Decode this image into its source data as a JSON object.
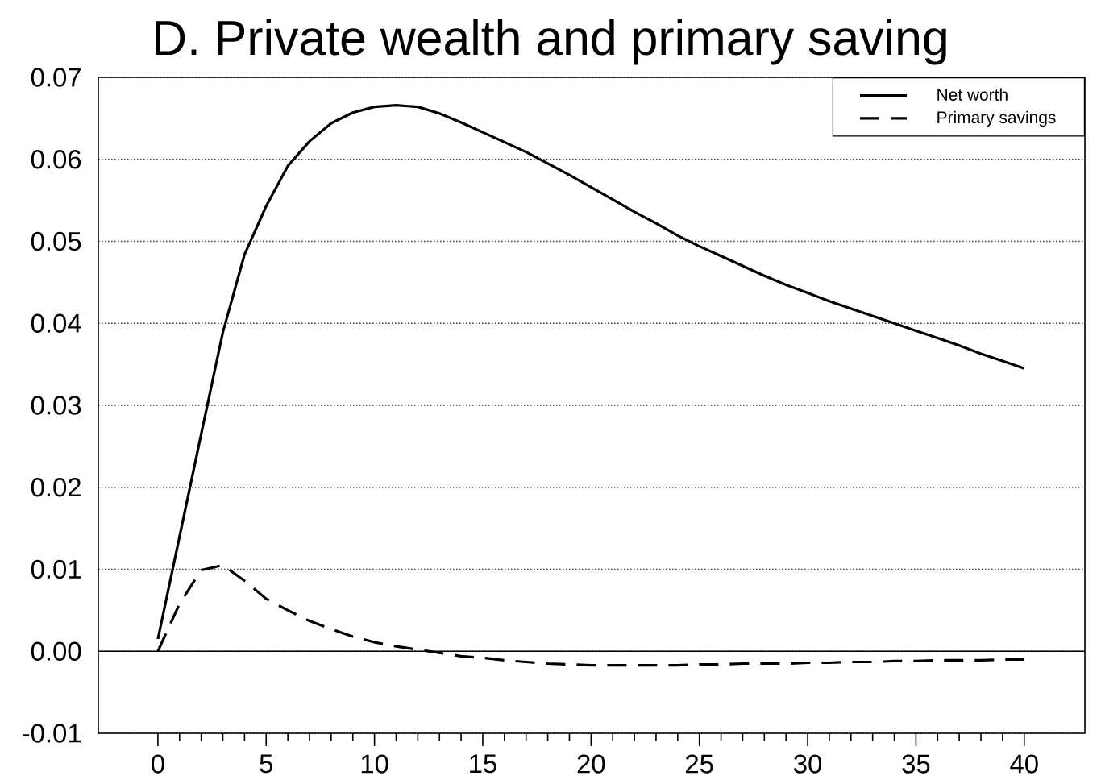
{
  "chart_data": {
    "type": "line",
    "title": "D. Private wealth and primary saving",
    "x": [
      0,
      1,
      2,
      3,
      4,
      5,
      6,
      7,
      8,
      9,
      10,
      11,
      12,
      13,
      14,
      15,
      16,
      17,
      18,
      19,
      20,
      21,
      22,
      23,
      24,
      25,
      26,
      27,
      28,
      29,
      30,
      31,
      32,
      33,
      34,
      35,
      36,
      37,
      38,
      39,
      40
    ],
    "series": [
      {
        "name": "Net worth",
        "color": "#000000",
        "line_style": "solid",
        "values": [
          0.0015,
          0.014,
          0.0265,
          0.0389,
          0.0484,
          0.0543,
          0.0592,
          0.0622,
          0.0644,
          0.0657,
          0.0664,
          0.0666,
          0.0664,
          0.0656,
          0.0645,
          0.0633,
          0.0621,
          0.0609,
          0.0595,
          0.0581,
          0.0566,
          0.0551,
          0.0536,
          0.0522,
          0.0507,
          0.0494,
          0.0482,
          0.047,
          0.0458,
          0.0447,
          0.0437,
          0.0427,
          0.0418,
          0.0409,
          0.04,
          0.0391,
          0.0382,
          0.0373,
          0.0363,
          0.0354,
          0.0345
        ]
      },
      {
        "name": "Primary savings",
        "color": "#000000",
        "line_style": "dashed",
        "values": [
          0,
          0.0058,
          0.0099,
          0.0105,
          0.0086,
          0.0064,
          0.005,
          0.0037,
          0.0027,
          0.0018,
          0.0011,
          0.0006,
          0.0002,
          -0.0002,
          -0.0006,
          -0.0008,
          -0.0011,
          -0.0013,
          -0.0015,
          -0.0016,
          -0.0017,
          -0.0017,
          -0.0017,
          -0.0017,
          -0.0017,
          -0.0016,
          -0.0016,
          -0.0015,
          -0.0015,
          -0.0015,
          -0.0014,
          -0.0014,
          -0.0013,
          -0.0013,
          -0.0012,
          -0.0012,
          -0.0011,
          -0.0011,
          -0.0011,
          -0.001,
          -0.001
        ]
      }
    ],
    "xlim": [
      -2.75,
      42.8
    ],
    "ylim": [
      -0.01,
      0.07
    ],
    "xticks": [
      0,
      {
        "value": 1,
        "label": null
      },
      {
        "value": 2,
        "label": null
      },
      {
        "value": 3,
        "label": null
      },
      {
        "value": 4,
        "label": null
      },
      5,
      {
        "value": 6,
        "label": null
      },
      {
        "value": 7,
        "label": null
      },
      {
        "value": 8,
        "label": null
      },
      {
        "value": 9,
        "label": null
      },
      10,
      {
        "value": 11,
        "label": null
      },
      {
        "value": 12,
        "label": null
      },
      {
        "value": 13,
        "label": null
      },
      {
        "value": 14,
        "label": null
      },
      15,
      {
        "value": 16,
        "label": null
      },
      {
        "value": 17,
        "label": null
      },
      {
        "value": 18,
        "label": null
      },
      {
        "value": 19,
        "label": null
      },
      20,
      {
        "value": 21,
        "label": null
      },
      {
        "value": 22,
        "label": null
      },
      {
        "value": 23,
        "label": null
      },
      {
        "value": 24,
        "label": null
      },
      25,
      {
        "value": 26,
        "label": null
      },
      {
        "value": 27,
        "label": null
      },
      {
        "value": 28,
        "label": null
      },
      {
        "value": 29,
        "label": null
      },
      30,
      {
        "value": 31,
        "label": null
      },
      {
        "value": 32,
        "label": null
      },
      {
        "value": 33,
        "label": null
      },
      {
        "value": 34,
        "label": null
      },
      35,
      {
        "value": 36,
        "label": null
      },
      {
        "value": 37,
        "label": null
      },
      {
        "value": 38,
        "label": null
      },
      {
        "value": 39,
        "label": null
      },
      40
    ],
    "yticks": [
      -0.01,
      {
        "value": 0,
        "label": "0.00"
      },
      0.01,
      0.02,
      0.03,
      0.04,
      0.05,
      0.06,
      0.07
    ],
    "grid": "y",
    "legend": "top right",
    "ref_lines": [
      {
        "axis": "y",
        "value": 0,
        "color": "#000000"
      }
    ]
  }
}
